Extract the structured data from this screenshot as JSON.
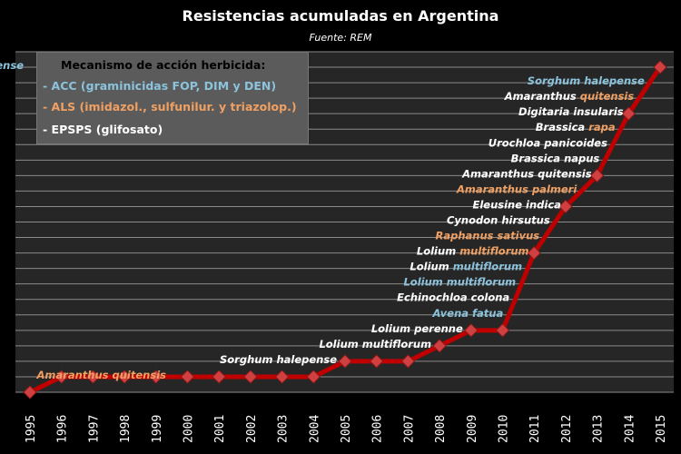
{
  "colors": {
    "ACC": "#8cc3dc",
    "ALS": "#f0a062",
    "EPSPS": "#ffffff",
    "line": "#c00000",
    "marker": "#d04040",
    "grid": "#8a8a8a",
    "plot_bg": "#262626"
  },
  "legend": {
    "title": "Mecanismo de acción herbicida:",
    "items": [
      {
        "label": "- ACC (graminicidas FOP, DIM y DEN)",
        "mechanism": "ACC"
      },
      {
        "label": "- ALS (imidazol., sulfunilur. y triazolop.)",
        "mechanism": "ALS"
      },
      {
        "label": "- EPSPS (glifosato)",
        "mechanism": "EPSPS"
      }
    ]
  },
  "chart_data": {
    "type": "line",
    "title": "Resistencias acumuladas en Argentina",
    "subtitle": "Fuente: REM",
    "xlabel": "",
    "ylabel": "",
    "x": [
      "1995",
      "1996",
      "1997",
      "1998",
      "1999",
      "2000",
      "2001",
      "2002",
      "2003",
      "2004",
      "2005",
      "2006",
      "2007",
      "2008",
      "2009",
      "2010",
      "2011",
      "2012",
      "2013",
      "2014",
      "2015"
    ],
    "values": [
      0,
      1,
      1,
      1,
      1,
      1,
      1,
      1,
      1,
      1,
      2,
      2,
      2,
      3,
      4,
      4,
      9,
      12,
      14,
      18,
      21
    ],
    "ylim": [
      0,
      22
    ],
    "y_tick_labels": false,
    "grid": true,
    "annotations": [
      {
        "level": 1,
        "segments": [
          {
            "text": "Amaranthus quitensis",
            "mechanism": "ALS"
          }
        ]
      },
      {
        "level": 2,
        "segments": [
          {
            "text": "Sorghum halepense",
            "mechanism": "EPSPS"
          }
        ]
      },
      {
        "level": 3,
        "segments": [
          {
            "text": "Lolium multiflorum",
            "mechanism": "EPSPS"
          }
        ]
      },
      {
        "level": 4,
        "segments": [
          {
            "text": "Lolium perenne",
            "mechanism": "EPSPS"
          }
        ]
      },
      {
        "level": 5,
        "segments": [
          {
            "text": "Avena fatua",
            "mechanism": "ACC"
          }
        ]
      },
      {
        "level": 6,
        "segments": [
          {
            "text": "Echinochloa colona",
            "mechanism": "EPSPS"
          }
        ]
      },
      {
        "level": 7,
        "segments": [
          {
            "text": "Lolium multiflorum",
            "mechanism": "ACC"
          }
        ]
      },
      {
        "level": 8,
        "segments": [
          {
            "text": "Lolium ",
            "mechanism": "EPSPS"
          },
          {
            "text": "multiflorum",
            "mechanism": "ACC"
          }
        ]
      },
      {
        "level": 9,
        "segments": [
          {
            "text": "Lolium ",
            "mechanism": "EPSPS"
          },
          {
            "text": "multiflorum",
            "mechanism": "ALS"
          }
        ]
      },
      {
        "level": 10,
        "segments": [
          {
            "text": "Raphanus sativus",
            "mechanism": "ALS"
          }
        ]
      },
      {
        "level": 11,
        "segments": [
          {
            "text": "Cynodon hirsutus",
            "mechanism": "EPSPS"
          }
        ]
      },
      {
        "level": 12,
        "segments": [
          {
            "text": "Eleusine indica",
            "mechanism": "EPSPS"
          }
        ]
      },
      {
        "level": 13,
        "segments": [
          {
            "text": "Amaranthus palmeri",
            "mechanism": "ALS"
          }
        ]
      },
      {
        "level": 14,
        "segments": [
          {
            "text": "Amaranthus quitensis",
            "mechanism": "EPSPS"
          }
        ]
      },
      {
        "level": 15,
        "segments": [
          {
            "text": "Brassica napus",
            "mechanism": "EPSPS"
          }
        ]
      },
      {
        "level": 16,
        "segments": [
          {
            "text": "Urochloa panicoides",
            "mechanism": "EPSPS"
          }
        ]
      },
      {
        "level": 17,
        "segments": [
          {
            "text": "Brassica ",
            "mechanism": "EPSPS"
          },
          {
            "text": "rapa",
            "mechanism": "ALS"
          }
        ]
      },
      {
        "level": 18,
        "segments": [
          {
            "text": "Digitaria insularis",
            "mechanism": "EPSPS"
          }
        ]
      },
      {
        "level": 19,
        "segments": [
          {
            "text": "Amaranthus ",
            "mechanism": "EPSPS"
          },
          {
            "text": "quitensis",
            "mechanism": "ALS"
          }
        ]
      },
      {
        "level": 20,
        "segments": [
          {
            "text": "Sorghum halepense",
            "mechanism": "ACC"
          }
        ]
      },
      {
        "level": 21,
        "segments": [
          {
            "text": "Sorghum ",
            "mechanism": "EPSPS"
          },
          {
            "text": "halepense",
            "mechanism": "ACC"
          }
        ]
      }
    ],
    "annotation_years": {
      "1": "1996",
      "2": "2005",
      "3": "2008",
      "4": "2009",
      "9": "2011",
      "12": "2012",
      "14": "2013",
      "18": "2014",
      "21": "2015"
    }
  }
}
